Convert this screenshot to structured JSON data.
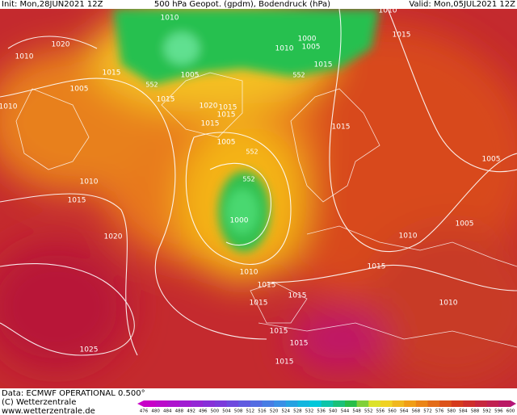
{
  "header": {
    "init": "Init: Mon,28JUN2021 12Z",
    "title": "500 hPa Geopot. (gpdm), Bodendruck (hPa)",
    "valid": "Valid: Mon,05JUL2021 12Z"
  },
  "map": {
    "isobar_labels": [
      "1020",
      "1010",
      "1015",
      "1005",
      "1010",
      "1010",
      "1015",
      "1020",
      "1025",
      "1010",
      "1005",
      "1015",
      "1020",
      "1015",
      "1015",
      "1015",
      "1005",
      "1000",
      "1010",
      "1015",
      "1015",
      "1015",
      "1015",
      "1015",
      "1000",
      "1005",
      "1010",
      "1015",
      "1010",
      "1015",
      "1015",
      "1010",
      "1015",
      "1010",
      "1005",
      "1005",
      "1015"
    ],
    "geopotential_labels": [
      "552",
      "552",
      "552",
      "552"
    ]
  },
  "footer": {
    "data": "Data: ECMWF OPERATIONAL 0.500°",
    "copyright": "(C) Wetterzentrale",
    "url": "www.wetterzentrale.de"
  },
  "colorbar": {
    "labels": [
      476,
      480,
      484,
      488,
      492,
      496,
      500,
      504,
      508,
      512,
      516,
      520,
      524,
      528,
      532,
      536,
      540,
      544,
      548,
      552,
      556,
      560,
      564,
      568,
      572,
      576,
      580,
      584,
      588,
      592,
      596,
      600
    ]
  }
}
